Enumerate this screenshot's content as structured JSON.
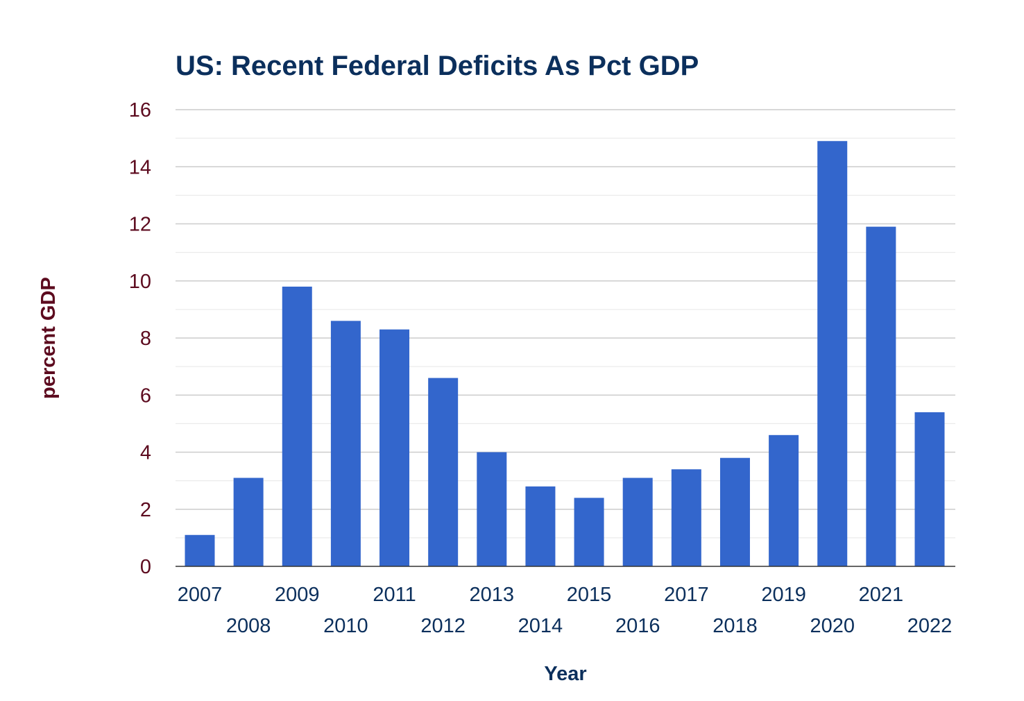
{
  "chart_data": {
    "type": "bar",
    "title": "US: Recent Federal Deficits As Pct GDP",
    "xlabel": "Year",
    "ylabel": "percent GDP",
    "categories": [
      "2007",
      "2008",
      "2009",
      "2010",
      "2011",
      "2012",
      "2013",
      "2014",
      "2015",
      "2016",
      "2017",
      "2018",
      "2019",
      "2020",
      "2021",
      "2022"
    ],
    "values": [
      1.1,
      3.1,
      9.8,
      8.6,
      8.3,
      6.6,
      4.0,
      2.8,
      2.4,
      3.1,
      3.4,
      3.8,
      4.6,
      14.9,
      11.9,
      5.4
    ],
    "ylim": [
      0,
      16
    ],
    "yticks": [
      "0",
      "2",
      "4",
      "6",
      "8",
      "10",
      "12",
      "14",
      "16"
    ],
    "grid": true,
    "legend": "none",
    "colors": {
      "bar": "#3366cc",
      "title": "#0b2f5c",
      "ytick": "#5c0a1e",
      "xtick": "#0b2f5c",
      "ylabel": "#5c0a1e",
      "xlabel": "#0b2f5c",
      "grid_major": "#cccccc",
      "grid_minor": "#ebebeb",
      "baseline": "#333333"
    }
  }
}
